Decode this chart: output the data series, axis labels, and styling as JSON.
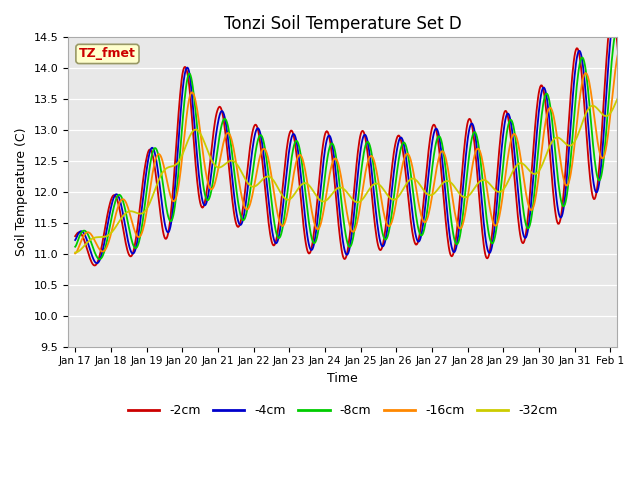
{
  "title": "Tonzi Soil Temperature Set D",
  "xlabel": "Time",
  "ylabel": "Soil Temperature (C)",
  "ylim": [
    9.5,
    14.5
  ],
  "annotation": "TZ_fmet",
  "annotation_color": "#cc0000",
  "annotation_bg": "#ffffcc",
  "plot_bg": "#e8e8e8",
  "series_colors": {
    "-2cm": "#cc0000",
    "-4cm": "#0000cc",
    "-8cm": "#00cc00",
    "-16cm": "#ff8800",
    "-32cm": "#cccc00"
  },
  "tick_labels": [
    "Jan 17",
    "Jan 18",
    "Jan 19",
    "Jan 20",
    "Jan 21",
    "Jan 22",
    "Jan 23",
    "Jan 24",
    "Jan 25",
    "Jan 26",
    "Jan 27",
    "Jan 28",
    "Jan 29",
    "Jan 30",
    "Jan 31",
    "Feb 1"
  ]
}
